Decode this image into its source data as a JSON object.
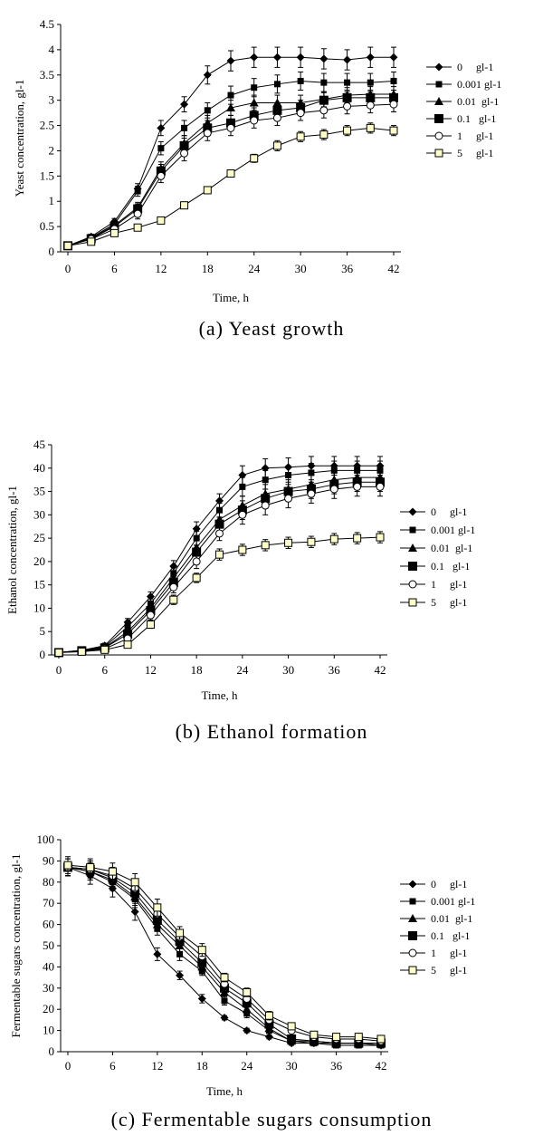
{
  "chart_data": [
    {
      "type": "line",
      "caption": "(a) Yeast growth",
      "xlabel": "Time, h",
      "ylabel": "Yeast concentration, gl-1",
      "xlim": [
        0,
        42
      ],
      "ylim": [
        0,
        4.5
      ],
      "xticks": [
        "0",
        "6",
        "12",
        "18",
        "24",
        "30",
        "36",
        "42"
      ],
      "yticks": [
        "0",
        "0.5",
        "1",
        "1.5",
        "2",
        "2.5",
        "3",
        "3.5",
        "4",
        "4.5"
      ],
      "legend_position": "right",
      "x": [
        0,
        3,
        6,
        9,
        12,
        15,
        18,
        21,
        24,
        27,
        30,
        33,
        36,
        39,
        42
      ],
      "series": [
        {
          "name": "0     gl-1",
          "marker": "diamond",
          "values": [
            0.12,
            0.3,
            0.6,
            1.25,
            2.45,
            2.92,
            3.5,
            3.78,
            3.85,
            3.85,
            3.85,
            3.82,
            3.8,
            3.85,
            3.85
          ],
          "errors": [
            0.05,
            0.05,
            0.06,
            0.1,
            0.15,
            0.15,
            0.18,
            0.2,
            0.2,
            0.2,
            0.2,
            0.2,
            0.2,
            0.2,
            0.2
          ]
        },
        {
          "name": "0.001 gl-1",
          "marker": "square-small",
          "values": [
            0.12,
            0.28,
            0.55,
            1.2,
            2.05,
            2.45,
            2.8,
            3.1,
            3.25,
            3.32,
            3.38,
            3.35,
            3.35,
            3.35,
            3.38
          ],
          "errors": [
            0.05,
            0.05,
            0.06,
            0.1,
            0.13,
            0.15,
            0.15,
            0.18,
            0.18,
            0.18,
            0.18,
            0.18,
            0.18,
            0.18,
            0.18
          ]
        },
        {
          "name": "0.01  gl-1",
          "marker": "triangle",
          "values": [
            0.12,
            0.27,
            0.52,
            0.88,
            1.65,
            2.15,
            2.55,
            2.85,
            2.95,
            2.95,
            2.95,
            3.02,
            3.1,
            3.12,
            3.12
          ],
          "errors": [
            0.05,
            0.05,
            0.06,
            0.1,
            0.13,
            0.15,
            0.15,
            0.15,
            0.15,
            0.15,
            0.15,
            0.15,
            0.15,
            0.15,
            0.15
          ]
        },
        {
          "name": "0.1   gl-1",
          "marker": "square-large",
          "values": [
            0.12,
            0.26,
            0.5,
            0.85,
            1.6,
            2.1,
            2.45,
            2.55,
            2.7,
            2.8,
            2.85,
            3.0,
            3.05,
            3.05,
            3.05
          ],
          "errors": [
            0.05,
            0.05,
            0.06,
            0.1,
            0.13,
            0.15,
            0.15,
            0.15,
            0.15,
            0.15,
            0.15,
            0.15,
            0.15,
            0.15,
            0.15
          ]
        },
        {
          "name": "1     gl-1",
          "marker": "circle",
          "values": [
            0.12,
            0.25,
            0.45,
            0.75,
            1.5,
            1.95,
            2.35,
            2.45,
            2.6,
            2.65,
            2.75,
            2.8,
            2.88,
            2.9,
            2.92
          ],
          "errors": [
            0.05,
            0.05,
            0.06,
            0.1,
            0.13,
            0.15,
            0.15,
            0.15,
            0.15,
            0.15,
            0.15,
            0.15,
            0.15,
            0.15,
            0.15
          ]
        },
        {
          "name": "5     gl-1",
          "marker": "square-open",
          "values": [
            0.12,
            0.2,
            0.37,
            0.48,
            0.62,
            0.92,
            1.22,
            1.55,
            1.85,
            2.1,
            2.28,
            2.32,
            2.4,
            2.45,
            2.4
          ],
          "errors": [
            0.04,
            0.04,
            0.05,
            0.05,
            0.05,
            0.05,
            0.06,
            0.07,
            0.08,
            0.1,
            0.1,
            0.1,
            0.1,
            0.1,
            0.1
          ]
        }
      ]
    },
    {
      "type": "line",
      "caption": "(b) Ethanol formation",
      "xlabel": "Time, h",
      "ylabel": "Ethanol concentration, gl-1",
      "xlim": [
        0,
        42
      ],
      "ylim": [
        0,
        45
      ],
      "xticks": [
        "0",
        "6",
        "12",
        "18",
        "24",
        "30",
        "36",
        "42"
      ],
      "yticks": [
        "0",
        "5",
        "10",
        "15",
        "20",
        "25",
        "30",
        "35",
        "40",
        "45"
      ],
      "legend_position": "right",
      "x": [
        0,
        3,
        6,
        9,
        12,
        15,
        18,
        21,
        24,
        27,
        30,
        33,
        36,
        39,
        42
      ],
      "series": [
        {
          "name": "0     gl-1",
          "marker": "diamond",
          "values": [
            0.5,
            1.0,
            2.0,
            7.0,
            12.5,
            19.0,
            27.0,
            33.0,
            38.5,
            40.0,
            40.2,
            40.5,
            40.5,
            40.5,
            40.5
          ],
          "errors": [
            0.5,
            0.5,
            0.5,
            0.8,
            1.0,
            1.2,
            1.5,
            1.5,
            2.0,
            2.0,
            2.0,
            2.0,
            2.0,
            2.0,
            2.0
          ]
        },
        {
          "name": "0.001 gl-1",
          "marker": "square-small",
          "values": [
            0.5,
            1.0,
            1.8,
            6.0,
            11.0,
            17.5,
            25.0,
            31.0,
            36.0,
            37.5,
            38.5,
            39.0,
            39.5,
            39.5,
            39.5
          ],
          "errors": [
            0.5,
            0.5,
            0.5,
            0.8,
            1.0,
            1.2,
            1.5,
            1.5,
            2.0,
            2.0,
            2.0,
            2.0,
            2.0,
            2.0,
            2.0
          ]
        },
        {
          "name": "0.01  gl-1",
          "marker": "triangle",
          "values": [
            0.5,
            0.9,
            1.6,
            5.0,
            10.0,
            16.5,
            23.0,
            29.0,
            32.0,
            34.5,
            35.5,
            36.5,
            37.5,
            38.0,
            38.0
          ],
          "errors": [
            0.5,
            0.5,
            0.5,
            0.8,
            1.0,
            1.2,
            1.5,
            1.5,
            2.0,
            2.0,
            2.0,
            2.0,
            2.0,
            2.0,
            2.0
          ]
        },
        {
          "name": "0.1   gl-1",
          "marker": "square-large",
          "values": [
            0.5,
            0.9,
            1.5,
            4.5,
            9.5,
            15.5,
            22.0,
            28.0,
            31.0,
            33.5,
            35.0,
            35.5,
            36.5,
            37.0,
            37.0
          ],
          "errors": [
            0.5,
            0.5,
            0.5,
            0.8,
            1.0,
            1.2,
            1.5,
            1.5,
            2.0,
            2.0,
            2.0,
            2.0,
            2.0,
            2.0,
            2.0
          ]
        },
        {
          "name": "1     gl-1",
          "marker": "circle",
          "values": [
            0.5,
            0.8,
            1.3,
            3.5,
            8.5,
            14.5,
            20.0,
            26.0,
            30.0,
            32.0,
            33.5,
            34.5,
            35.5,
            36.0,
            36.0
          ],
          "errors": [
            0.5,
            0.5,
            0.5,
            0.8,
            1.0,
            1.2,
            1.5,
            1.5,
            2.0,
            2.0,
            2.0,
            2.0,
            2.0,
            2.0,
            2.0
          ]
        },
        {
          "name": "5     gl-1",
          "marker": "square-open",
          "values": [
            0.5,
            0.7,
            1.1,
            2.2,
            6.5,
            11.8,
            16.5,
            21.5,
            22.5,
            23.5,
            24.0,
            24.2,
            24.8,
            25.0,
            25.2
          ],
          "errors": [
            0.4,
            0.4,
            0.5,
            0.6,
            0.8,
            1.0,
            1.0,
            1.2,
            1.2,
            1.2,
            1.2,
            1.2,
            1.2,
            1.2,
            1.2
          ]
        }
      ]
    },
    {
      "type": "line",
      "caption": "(c) Fermentable sugars consumption",
      "xlabel": "Time, h",
      "ylabel": "Fermentable sugars concentration, gl-1",
      "xlim": [
        0,
        42
      ],
      "ylim": [
        0,
        100
      ],
      "xticks": [
        "0",
        "6",
        "12",
        "18",
        "24",
        "30",
        "36",
        "42"
      ],
      "yticks": [
        "0",
        "10",
        "20",
        "30",
        "40",
        "50",
        "60",
        "70",
        "80",
        "90",
        "100"
      ],
      "legend_position": "right",
      "x": [
        0,
        3,
        6,
        9,
        12,
        15,
        18,
        21,
        24,
        27,
        30,
        33,
        36,
        39,
        42
      ],
      "series": [
        {
          "name": "0     gl-1",
          "marker": "diamond",
          "values": [
            87,
            83,
            77,
            66,
            46,
            36,
            25,
            16,
            10,
            7,
            4,
            4,
            4,
            4,
            3
          ],
          "errors": [
            4,
            4,
            4,
            4,
            3,
            2,
            2,
            1,
            1,
            1,
            1,
            1,
            1,
            1,
            1
          ]
        },
        {
          "name": "0.001 gl-1",
          "marker": "square-small",
          "values": [
            87,
            85,
            80,
            72,
            58,
            46,
            38,
            24,
            18,
            10,
            5,
            4,
            3,
            3,
            3
          ],
          "errors": [
            4,
            4,
            4,
            4,
            3,
            3,
            2,
            2,
            2,
            1,
            1,
            1,
            1,
            1,
            1
          ]
        },
        {
          "name": "0.01  gl-1",
          "marker": "triangle",
          "values": [
            87,
            85,
            81,
            73,
            60,
            50,
            40,
            28,
            20,
            11,
            5,
            5,
            4,
            4,
            4
          ],
          "errors": [
            4,
            4,
            4,
            4,
            3,
            3,
            2,
            2,
            2,
            1,
            1,
            1,
            1,
            1,
            1
          ]
        },
        {
          "name": "0.1   gl-1",
          "marker": "square-large",
          "values": [
            87,
            86,
            82,
            75,
            62,
            52,
            42,
            30,
            23,
            13,
            6,
            5,
            4,
            4,
            4
          ],
          "errors": [
            4,
            4,
            4,
            4,
            3,
            3,
            2,
            2,
            2,
            1,
            1,
            1,
            1,
            1,
            1
          ]
        },
        {
          "name": "1     gl-1",
          "marker": "circle",
          "values": [
            87,
            86,
            83,
            77,
            65,
            54,
            45,
            32,
            25,
            15,
            10,
            7,
            6,
            6,
            5
          ],
          "errors": [
            4,
            4,
            4,
            4,
            3,
            3,
            3,
            2,
            2,
            2,
            1,
            1,
            1,
            1,
            1
          ]
        },
        {
          "name": "5     gl-1",
          "marker": "square-open",
          "values": [
            88,
            87,
            85,
            80,
            68,
            56,
            48,
            35,
            28,
            17,
            12,
            8,
            7,
            7,
            6
          ],
          "errors": [
            4,
            4,
            4,
            4,
            4,
            3,
            3,
            2,
            2,
            2,
            1,
            1,
            1,
            1,
            1
          ]
        }
      ]
    }
  ]
}
